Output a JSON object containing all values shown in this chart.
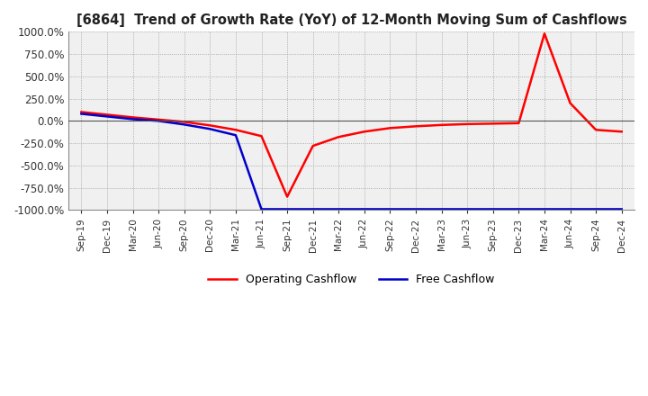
{
  "title": "[6864]  Trend of Growth Rate (YoY) of 12-Month Moving Sum of Cashflows",
  "ylim": [
    -1000,
    1000
  ],
  "yticks": [
    1000.0,
    750.0,
    500.0,
    250.0,
    0.0,
    -250.0,
    -500.0,
    -750.0,
    -1000.0
  ],
  "background_color": "#ffffff",
  "plot_bg_color": "#f0f0f0",
  "grid_color": "#999999",
  "operating_color": "#ff0000",
  "free_color": "#0000cc",
  "legend_labels": [
    "Operating Cashflow",
    "Free Cashflow"
  ],
  "x_labels": [
    "Sep-19",
    "Dec-19",
    "Mar-20",
    "Jun-20",
    "Sep-20",
    "Dec-20",
    "Mar-21",
    "Jun-21",
    "Sep-21",
    "Dec-21",
    "Mar-22",
    "Jun-22",
    "Sep-22",
    "Dec-22",
    "Mar-23",
    "Jun-23",
    "Sep-23",
    "Dec-23",
    "Mar-24",
    "Jun-24",
    "Sep-24",
    "Dec-24"
  ],
  "operating_cashflow": [
    100,
    70,
    40,
    15,
    -10,
    -50,
    -100,
    -170,
    -850,
    -280,
    -180,
    -120,
    -80,
    -60,
    -45,
    -35,
    -30,
    -25,
    980,
    200,
    -100,
    -120
  ],
  "free_cashflow": [
    80,
    50,
    20,
    0,
    -40,
    -90,
    -160,
    -990,
    -990,
    -990,
    -990,
    -990,
    -990,
    -990,
    -990,
    -990,
    -990,
    -990,
    -990,
    -990,
    -990,
    -990
  ]
}
